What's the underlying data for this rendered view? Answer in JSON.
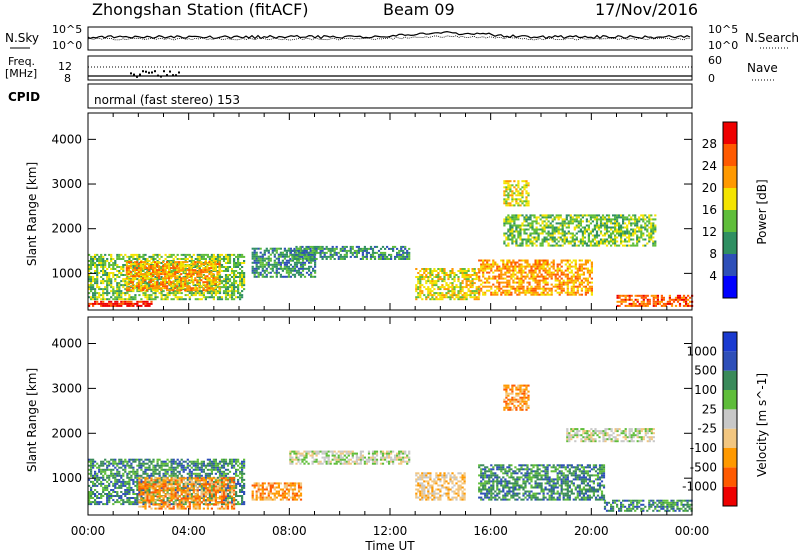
{
  "header": {
    "station": "Zhongshan Station (fitACF)",
    "beam": "Beam 09",
    "date": "17/Nov/2016"
  },
  "summary_panels": {
    "nsky_label": "N.Sky",
    "nsearch_label": "N.Search",
    "noise_ticks": [
      "10^5",
      "10^0"
    ],
    "freq_label_1": "Freq.",
    "freq_label_2": "[MHz]",
    "freq_ticks": [
      "12",
      "8"
    ],
    "nave_label": "Nave",
    "nave_ticks": [
      "60",
      "0"
    ],
    "cpid_label": "CPID",
    "cpid_value": "normal (fast stereo) 153"
  },
  "colors": {
    "power": [
      "#0000ff",
      "#2e4fb8",
      "#2f8f62",
      "#5fbd3a",
      "#f4e400",
      "#ff9900",
      "#ff5a00",
      "#ee0000"
    ],
    "velocity": [
      "#ee0000",
      "#ff5a00",
      "#ff9900",
      "#f2c680",
      "#c8c8c8",
      "#5fbd3a",
      "#3a8a5a",
      "#2e4fb8",
      "#1a3ad0"
    ],
    "frame": "#000000"
  },
  "chart_data": [
    {
      "type": "heatmap",
      "name": "power-panel",
      "ylabel": "Slant Range [km]",
      "yticks": [
        "4000",
        "3000",
        "2000",
        "1000"
      ],
      "ylim": [
        180,
        4590
      ],
      "xlim": [
        0,
        24
      ],
      "colorbar_label": "Power [dB]",
      "colorbar_ticks": [
        "28",
        "24",
        "20",
        "16",
        "12",
        "8",
        "4"
      ],
      "colorbar_range": [
        0,
        32
      ],
      "regions": [
        {
          "t0": 0.0,
          "t1": 6.2,
          "r0": 400,
          "r1": 1400,
          "level": 3
        },
        {
          "t0": 1.5,
          "t1": 5.2,
          "r0": 600,
          "r1": 1250,
          "level": 5
        },
        {
          "t0": 0.0,
          "t1": 2.5,
          "r0": 250,
          "r1": 380,
          "level": 7
        },
        {
          "t0": 6.5,
          "t1": 9.0,
          "r0": 900,
          "r1": 1550,
          "level": 2
        },
        {
          "t0": 8.0,
          "t1": 12.8,
          "r0": 1300,
          "r1": 1600,
          "level": 2
        },
        {
          "t0": 13.0,
          "t1": 15.5,
          "r0": 400,
          "r1": 1100,
          "level": 4
        },
        {
          "t0": 15.5,
          "t1": 20.0,
          "r0": 500,
          "r1": 1300,
          "level": 5
        },
        {
          "t0": 16.5,
          "t1": 22.5,
          "r0": 1600,
          "r1": 2300,
          "level": 3
        },
        {
          "t0": 21.0,
          "t1": 24.0,
          "r0": 250,
          "r1": 500,
          "level": 6
        },
        {
          "t0": 16.5,
          "t1": 17.5,
          "r0": 2500,
          "r1": 3050,
          "level": 4
        }
      ]
    },
    {
      "type": "heatmap",
      "name": "velocity-panel",
      "xlabel": "Time UT",
      "ylabel": "Slant Range [km]",
      "xticks": [
        "00:00",
        "04:00",
        "08:00",
        "12:00",
        "16:00",
        "20:00",
        "00:00"
      ],
      "yticks": [
        "4000",
        "3000",
        "2000",
        "1000"
      ],
      "ylim": [
        180,
        4590
      ],
      "xlim": [
        0,
        24
      ],
      "colorbar_label": "Velocity [m s^-1]",
      "colorbar_ticks": [
        "1000",
        "500",
        "100",
        "25",
        "-25",
        "-100",
        "-500",
        "-1000"
      ],
      "regions": [
        {
          "t0": 0.0,
          "t1": 6.2,
          "r0": 400,
          "r1": 1400,
          "level": 6
        },
        {
          "t0": 2.0,
          "t1": 5.8,
          "r0": 300,
          "r1": 1000,
          "level": 2
        },
        {
          "t0": 6.5,
          "t1": 8.5,
          "r0": 500,
          "r1": 900,
          "level": 2
        },
        {
          "t0": 8.0,
          "t1": 12.8,
          "r0": 1300,
          "r1": 1600,
          "level": 4
        },
        {
          "t0": 13.0,
          "t1": 15.0,
          "r0": 500,
          "r1": 1100,
          "level": 3
        },
        {
          "t0": 15.5,
          "t1": 20.5,
          "r0": 500,
          "r1": 1300,
          "level": 6
        },
        {
          "t0": 19.0,
          "t1": 22.5,
          "r0": 1800,
          "r1": 2100,
          "level": 4
        },
        {
          "t0": 20.5,
          "t1": 24.0,
          "r0": 250,
          "r1": 500,
          "level": 6
        },
        {
          "t0": 16.5,
          "t1": 17.5,
          "r0": 2500,
          "r1": 3050,
          "level": 2
        }
      ]
    }
  ]
}
